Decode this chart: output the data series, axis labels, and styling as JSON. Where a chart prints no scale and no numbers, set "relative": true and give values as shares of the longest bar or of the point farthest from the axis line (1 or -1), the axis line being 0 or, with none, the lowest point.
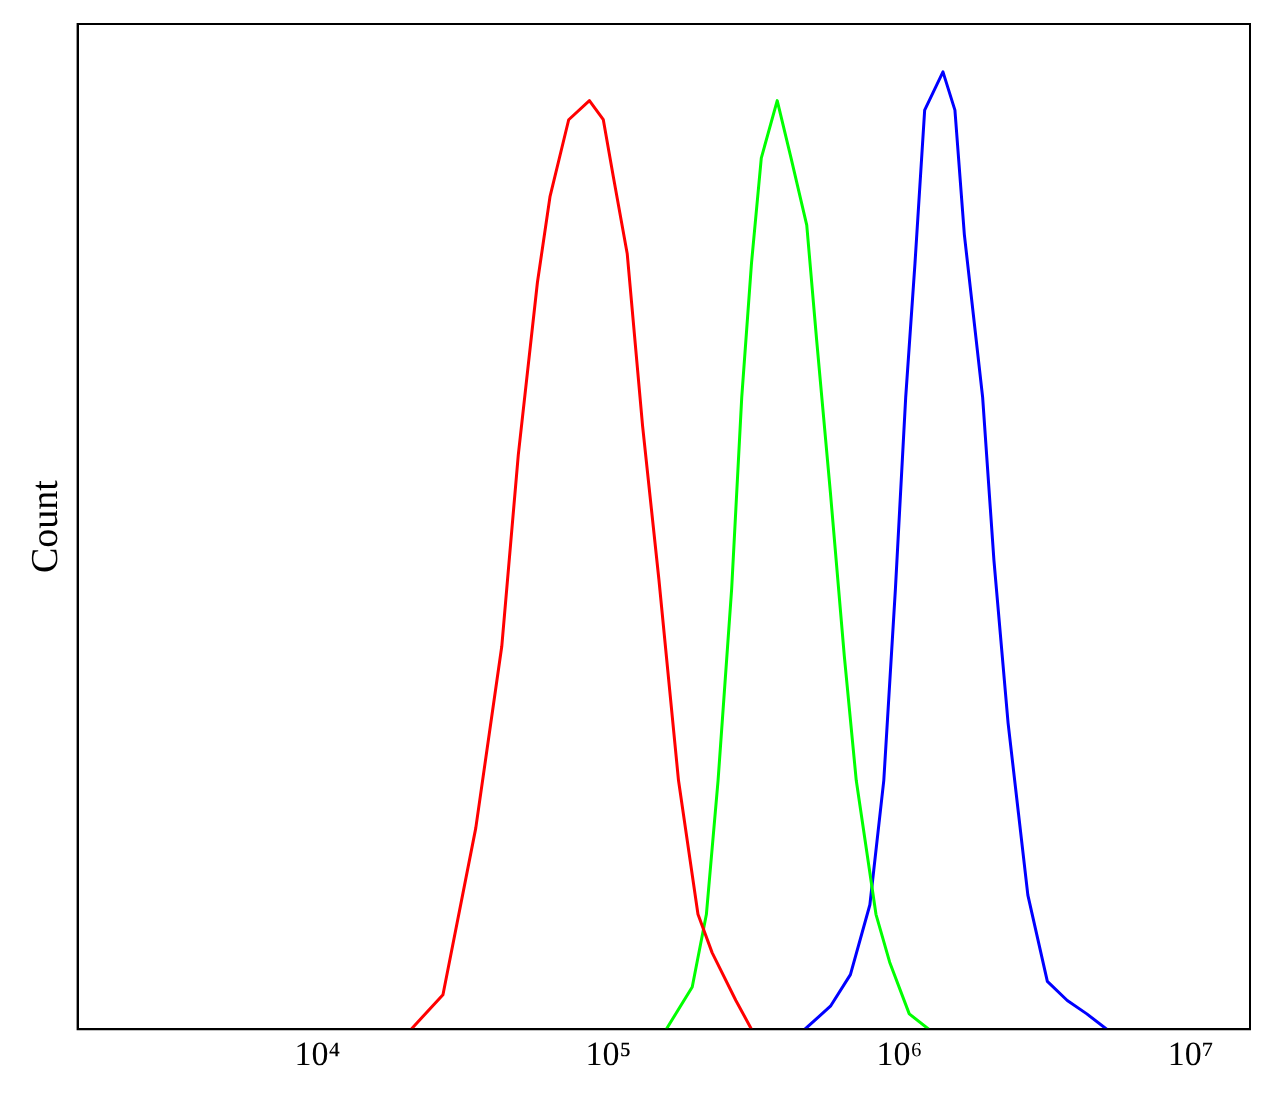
{
  "chart_data": {
    "type": "line",
    "ylabel": "Count",
    "relative": true,
    "log": "x",
    "grid": false,
    "legend": false,
    "marker": "none",
    "line_style": "solid",
    "xlim": [
      1500,
      16000000
    ],
    "xticks": [
      {
        "value": 10000,
        "label": "10⁴"
      },
      {
        "value": 100000,
        "label": "10⁵"
      },
      {
        "value": 1000000,
        "label": "10⁶"
      },
      {
        "value": 10000000,
        "label": "10⁷"
      }
    ],
    "series": [
      {
        "color": "#ff0000",
        "x": [
          21000,
          27000,
          35000,
          43000,
          49000,
          57000,
          63000,
          73000,
          86000,
          96000,
          104000,
          116000,
          131000,
          149000,
          174000,
          203000,
          227000,
          274000,
          310000
        ],
        "values": [
          0,
          0.036,
          0.21,
          0.4,
          0.6,
          0.78,
          0.87,
          0.95,
          0.97,
          0.95,
          0.89,
          0.81,
          0.63,
          0.47,
          0.26,
          0.12,
          0.08,
          0.03,
          0
        ]
      },
      {
        "color": "#00ff00",
        "x": [
          158000,
          194000,
          217000,
          238000,
          265000,
          287000,
          310000,
          335000,
          380000,
          424000,
          480000,
          519000,
          579000,
          646000,
          710000,
          830000,
          925000,
          1080000,
          1260000
        ],
        "values": [
          0,
          0.044,
          0.12,
          0.26,
          0.46,
          0.66,
          0.8,
          0.91,
          0.97,
          0.91,
          0.84,
          0.72,
          0.56,
          0.39,
          0.26,
          0.12,
          0.07,
          0.016,
          0
        ]
      },
      {
        "color": "#0000ff",
        "x": [
          473000,
          579000,
          678000,
          791000,
          883000,
          968000,
          1050000,
          1130000,
          1220000,
          1410000,
          1550000,
          1670000,
          1930000,
          2110000,
          2360000,
          2760000,
          3220000,
          3770000,
          4400000,
          5150000
        ],
        "values": [
          0,
          0.024,
          0.057,
          0.13,
          0.26,
          0.46,
          0.66,
          0.8,
          0.96,
          1,
          0.96,
          0.83,
          0.66,
          0.49,
          0.32,
          0.14,
          0.05,
          0.03,
          0.016,
          0
        ]
      }
    ]
  }
}
